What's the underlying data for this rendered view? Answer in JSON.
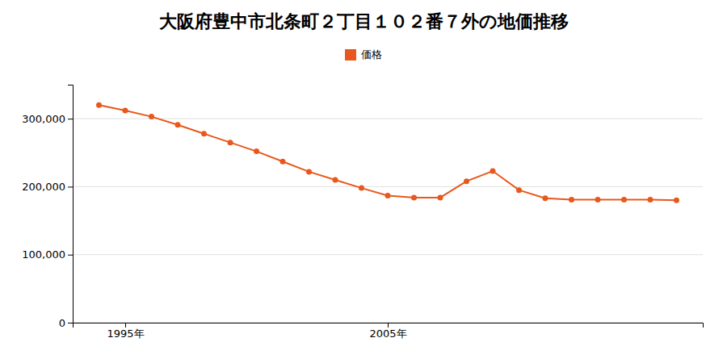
{
  "chart_data": {
    "type": "line",
    "title": "大阪府豊中市北条町２丁目１０２番７外の地価推移",
    "x": [
      1994,
      1995,
      1996,
      1997,
      1998,
      1999,
      2000,
      2001,
      2002,
      2003,
      2004,
      2005,
      2006,
      2007,
      2008,
      2009,
      2010,
      2011,
      2012,
      2013,
      2014,
      2015,
      2016
    ],
    "series": [
      {
        "name": "価格",
        "color": "#e8581c",
        "marker": "circle",
        "values": [
          320000,
          312000,
          303000,
          291000,
          278000,
          265000,
          252000,
          237000,
          222000,
          210000,
          198000,
          187000,
          184000,
          184000,
          208000,
          223000,
          195000,
          183000,
          181000,
          181000,
          181000,
          181000,
          180000
        ]
      }
    ],
    "xlim": [
      1993,
      2017
    ],
    "xticks": [
      {
        "value": 1995,
        "label": "1995年"
      },
      {
        "value": 2005,
        "label": "2005年"
      }
    ],
    "ylim": [
      0,
      350000
    ],
    "yticks": [
      0,
      {
        "value": 100000,
        "label": "100,000"
      },
      {
        "value": 200000,
        "label": "200,000"
      },
      {
        "value": 300000,
        "label": "300,000"
      }
    ],
    "grid": "y",
    "legend": "top"
  }
}
